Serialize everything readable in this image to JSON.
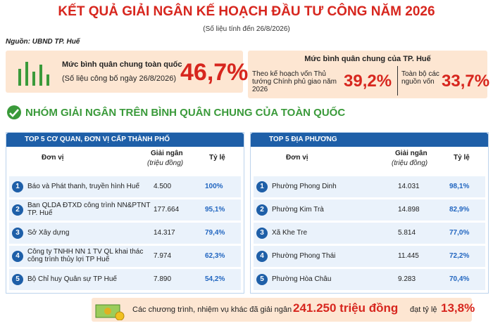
{
  "header": {
    "title": "KẾT QUẢ GIẢI NGÂN KẾ HOẠCH ĐẦU TƯ CÔNG NĂM 2026",
    "subtitle": "(Số liệu tính đến 26/8/2026)",
    "source": "Nguồn: UBND TP. Huế"
  },
  "national": {
    "label": "Mức bình quân chung toàn quốc",
    "note": "(Số liệu công bố ngày 26/8/2026)",
    "value": "46,7%"
  },
  "city": {
    "label": "Mức bình quân chung của TP. Huế",
    "items": [
      {
        "label": "Theo kế hoạch vốn Thủ tướng Chính phủ giao năm 2026",
        "value": "39,2%"
      },
      {
        "label": "Toàn bộ các nguồn vốn",
        "value": "33,7%"
      }
    ]
  },
  "section": {
    "title": "NHÓM GIẢI NGÂN TRÊN BÌNH QUÂN CHUNG CỦA TOÀN QUỐC"
  },
  "tables": [
    {
      "title": "TOP 5 CƠ QUAN, ĐƠN VỊ CẤP THÀNH PHỐ",
      "columns": [
        "Đơn vị",
        "Giải ngân",
        "(triệu đồng)",
        "Tỷ lệ"
      ],
      "rows": [
        [
          "1",
          "Báo và Phát thanh, truyền hình Huế",
          "4.500",
          "100%"
        ],
        [
          "2",
          "Ban QLDA ĐTXD công trình NN&PTNT TP. Huế",
          "177.664",
          "95,1%"
        ],
        [
          "3",
          "Sở Xây dựng",
          "14.317",
          "79,4%"
        ],
        [
          "4",
          "Công ty TNHH NN 1 TV QL khai thác công trình thủy lợi TP Huế",
          "7.974",
          "62,3%"
        ],
        [
          "5",
          "Bộ Chỉ huy Quân sự TP Huế",
          "7.890",
          "54,2%"
        ]
      ]
    },
    {
      "title": "TOP 5 ĐỊA PHƯƠNG",
      "columns": [
        "Đơn vị",
        "Giải ngân",
        "(triệu đồng)",
        "Tỷ lệ"
      ],
      "rows": [
        [
          "1",
          "Phường Phong Dinh",
          "14.031",
          "98,1%"
        ],
        [
          "2",
          "Phường Kim Trà",
          "14.898",
          "82,9%"
        ],
        [
          "3",
          "Xã Khe Tre",
          "5.814",
          "77,0%"
        ],
        [
          "4",
          "Phường Phong Thái",
          "11.445",
          "72,2%"
        ],
        [
          "5",
          "Phường Hòa Châu",
          "9.283",
          "70,4%"
        ]
      ]
    }
  ],
  "footer": {
    "text": "Các chương trình, nhiệm vụ khác đã giải ngân",
    "amount": "241.250 triệu đồng",
    "text2": "đạt tỷ lệ",
    "rate": "13,8%"
  }
}
